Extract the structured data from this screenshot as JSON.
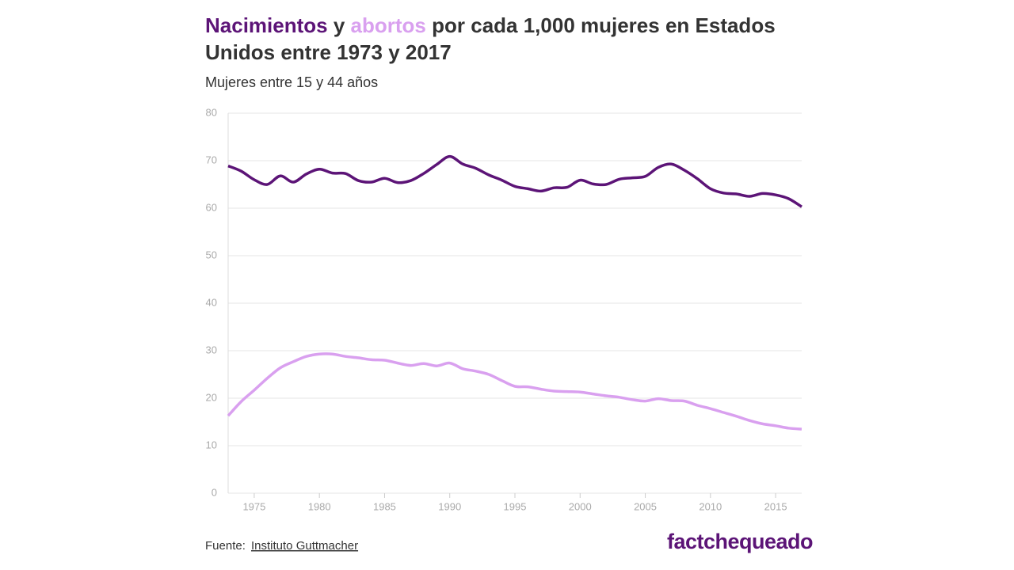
{
  "chart_data": {
    "type": "line",
    "title": [
      "y",
      "por cada 1,000 mujeres en Estados Unidos entre 1973 y 2017"
    ],
    "subtitle": "Mujeres entre 15 y 44 años",
    "x": [
      1973,
      1974,
      1975,
      1976,
      1977,
      1978,
      1979,
      1980,
      1981,
      1982,
      1983,
      1984,
      1985,
      1986,
      1987,
      1988,
      1989,
      1990,
      1991,
      1992,
      1993,
      1994,
      1995,
      1996,
      1997,
      1998,
      1999,
      2000,
      2001,
      2002,
      2003,
      2004,
      2005,
      2006,
      2007,
      2008,
      2009,
      2010,
      2011,
      2012,
      2013,
      2014,
      2015,
      2016,
      2017
    ],
    "series": [
      {
        "name": "Nacimientos",
        "color": "#5c1477",
        "values": [
          68.9,
          67.8,
          66.0,
          65.0,
          66.8,
          65.5,
          67.2,
          68.2,
          67.4,
          67.3,
          65.8,
          65.5,
          66.3,
          65.4,
          65.8,
          67.3,
          69.2,
          70.9,
          69.3,
          68.4,
          67.0,
          65.9,
          64.6,
          64.1,
          63.6,
          64.3,
          64.4,
          65.9,
          65.1,
          65.0,
          66.1,
          66.4,
          66.7,
          68.6,
          69.3,
          68.0,
          66.2,
          64.1,
          63.2,
          63.0,
          62.5,
          63.1,
          62.8,
          62.0,
          60.3
        ]
      },
      {
        "name": "abortos",
        "color": "#d9a0ef",
        "values": [
          16.3,
          19.3,
          21.7,
          24.2,
          26.4,
          27.7,
          28.8,
          29.3,
          29.3,
          28.8,
          28.5,
          28.1,
          28.0,
          27.4,
          26.9,
          27.3,
          26.8,
          27.4,
          26.2,
          25.7,
          25.0,
          23.7,
          22.5,
          22.4,
          21.9,
          21.5,
          21.4,
          21.3,
          20.9,
          20.5,
          20.2,
          19.7,
          19.4,
          19.9,
          19.5,
          19.4,
          18.5,
          17.8,
          17.0,
          16.2,
          15.3,
          14.6,
          14.2,
          13.7,
          13.5
        ]
      }
    ],
    "xlim": [
      1973,
      2017
    ],
    "xticks": [
      1975,
      1980,
      1985,
      1990,
      1995,
      2000,
      2005,
      2010,
      2015
    ],
    "ylim": [
      0,
      80
    ],
    "yticks": [
      0,
      10,
      20,
      30,
      40,
      50,
      60,
      70,
      80
    ],
    "grid": true
  },
  "source": {
    "label": "Fuente:",
    "link": "Instituto Guttmacher"
  },
  "logo": "factchequeado"
}
